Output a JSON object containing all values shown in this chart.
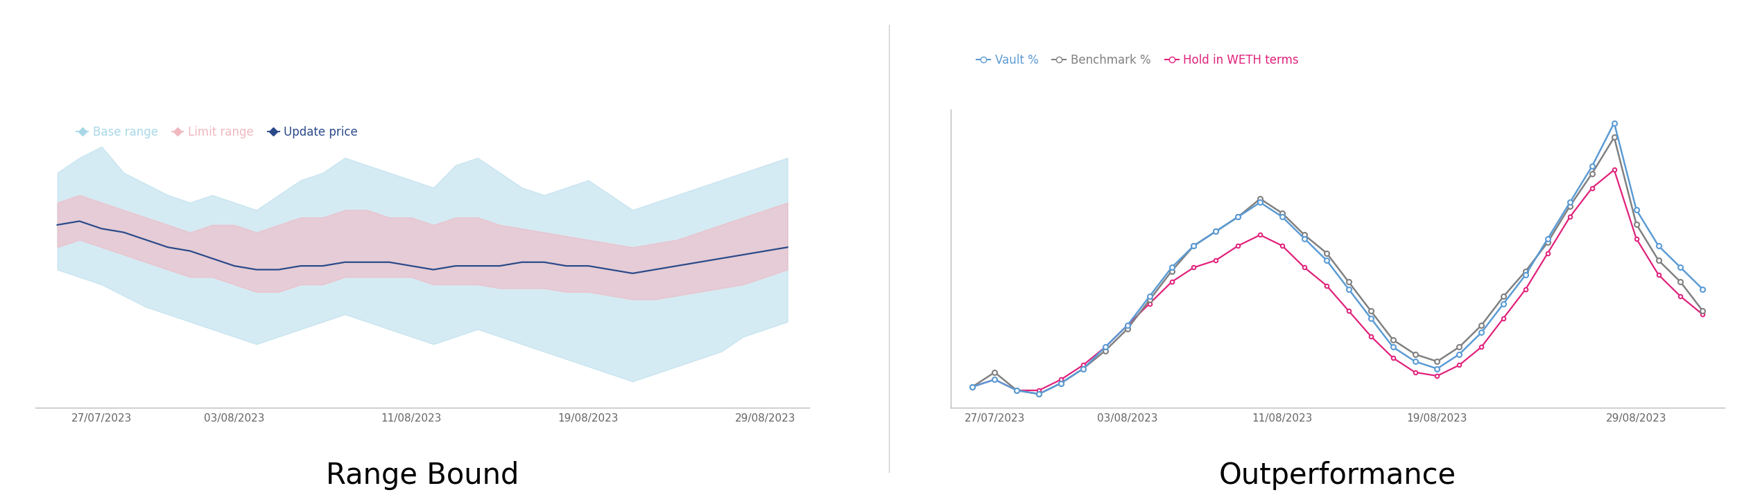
{
  "chart1": {
    "title": "Range Bound",
    "legend": [
      "Base range",
      "Limit range",
      "Update price"
    ],
    "legend_colors": [
      "#a8d8e8",
      "#f0b8c0",
      "#2a4a8a"
    ],
    "x_labels": [
      "27/07/2023",
      "03/08/2023",
      "11/08/2023",
      "19/08/2023",
      "29/08/2023"
    ],
    "x_tick_pos": [
      2,
      8,
      16,
      24,
      32
    ],
    "base_upper": [
      88,
      92,
      95,
      88,
      85,
      82,
      80,
      82,
      80,
      78,
      82,
      86,
      88,
      92,
      90,
      88,
      86,
      84,
      90,
      92,
      88,
      84,
      82,
      84,
      86,
      82,
      78,
      80,
      82,
      84,
      86,
      88,
      90,
      92
    ],
    "base_lower": [
      62,
      60,
      58,
      55,
      52,
      50,
      48,
      46,
      44,
      42,
      44,
      46,
      48,
      50,
      48,
      46,
      44,
      42,
      44,
      46,
      44,
      42,
      40,
      38,
      36,
      34,
      32,
      34,
      36,
      38,
      40,
      44,
      46,
      48
    ],
    "limit_upper": [
      80,
      82,
      80,
      78,
      76,
      74,
      72,
      74,
      74,
      72,
      74,
      76,
      76,
      78,
      78,
      76,
      76,
      74,
      76,
      76,
      74,
      73,
      72,
      71,
      70,
      69,
      68,
      69,
      70,
      72,
      74,
      76,
      78,
      80
    ],
    "limit_lower": [
      68,
      70,
      68,
      66,
      64,
      62,
      60,
      60,
      58,
      56,
      56,
      58,
      58,
      60,
      60,
      60,
      60,
      58,
      58,
      58,
      57,
      57,
      57,
      56,
      56,
      55,
      54,
      54,
      55,
      56,
      57,
      58,
      60,
      62
    ],
    "update_price": [
      74,
      75,
      73,
      72,
      70,
      68,
      67,
      65,
      63,
      62,
      62,
      63,
      63,
      64,
      64,
      64,
      63,
      62,
      63,
      63,
      63,
      64,
      64,
      63,
      63,
      62,
      61,
      62,
      63,
      64,
      65,
      66,
      67,
      68
    ],
    "n_points": 34
  },
  "chart2": {
    "title": "Outperformance",
    "legend": [
      "Vault %",
      "Benchmark %",
      "Hold in WETH terms"
    ],
    "legend_colors": [
      "#5b9bd5",
      "#808080",
      "#e0207a"
    ],
    "x_labels": [
      "27/07/2023",
      "03/08/2023",
      "11/08/2023",
      "19/08/2023",
      "29/08/2023"
    ],
    "x_tick_pos": [
      1,
      7,
      14,
      21,
      30
    ],
    "vault": [
      5,
      7,
      4,
      3,
      6,
      10,
      16,
      22,
      30,
      38,
      44,
      48,
      52,
      56,
      52,
      46,
      40,
      32,
      24,
      16,
      12,
      10,
      14,
      20,
      28,
      36,
      46,
      56,
      66,
      78,
      54,
      44,
      38,
      32
    ],
    "benchmark": [
      5,
      9,
      4,
      3,
      6,
      10,
      15,
      21,
      29,
      37,
      44,
      48,
      52,
      57,
      53,
      47,
      42,
      34,
      26,
      18,
      14,
      12,
      16,
      22,
      30,
      37,
      45,
      55,
      64,
      74,
      50,
      40,
      34,
      26
    ],
    "hold_weth": [
      5,
      7,
      4,
      4,
      7,
      11,
      16,
      22,
      28,
      34,
      38,
      40,
      44,
      47,
      44,
      38,
      33,
      26,
      19,
      13,
      9,
      8,
      11,
      16,
      24,
      32,
      42,
      52,
      60,
      65,
      46,
      36,
      30,
      25
    ],
    "n_points": 34
  },
  "background_color": "#ffffff",
  "axis_color": "#bbbbbb",
  "title_fontsize": 30,
  "legend_fontsize": 12,
  "tick_fontsize": 11
}
